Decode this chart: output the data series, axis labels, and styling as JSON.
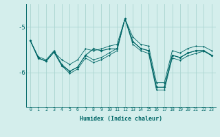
{
  "xlabel": "Humidex (Indice chaleur)",
  "x": [
    0,
    1,
    2,
    3,
    4,
    5,
    6,
    7,
    8,
    9,
    10,
    11,
    12,
    13,
    14,
    15,
    16,
    17,
    18,
    19,
    20,
    21,
    22,
    23
  ],
  "line1": [
    -5.3,
    -5.65,
    -5.72,
    -5.52,
    -5.82,
    -5.97,
    -5.88,
    -5.62,
    -5.72,
    -5.67,
    -5.57,
    -5.47,
    -4.82,
    -5.32,
    -5.47,
    -5.52,
    -6.32,
    -6.32,
    -5.62,
    -5.67,
    -5.57,
    -5.52,
    -5.52,
    -5.62
  ],
  "line2": [
    -5.3,
    -5.68,
    -5.75,
    -5.55,
    -5.85,
    -6.02,
    -5.92,
    -5.68,
    -5.78,
    -5.72,
    -5.62,
    -5.52,
    -4.82,
    -5.38,
    -5.52,
    -5.58,
    -6.38,
    -6.38,
    -5.68,
    -5.73,
    -5.63,
    -5.58,
    -5.53,
    -5.63
  ],
  "line3": [
    -5.3,
    -5.68,
    -5.75,
    -5.55,
    -5.72,
    -5.82,
    -5.72,
    -5.48,
    -5.52,
    -5.48,
    -5.42,
    -5.38,
    -4.82,
    -5.22,
    -5.38,
    -5.42,
    -6.22,
    -6.22,
    -5.52,
    -5.57,
    -5.47,
    -5.42,
    -5.43,
    -5.52
  ],
  "line_main": [
    -5.3,
    -5.68,
    -5.75,
    -5.55,
    -5.85,
    -5.97,
    -5.88,
    -5.62,
    -5.48,
    -5.52,
    -5.48,
    -5.48,
    -4.82,
    -5.32,
    -5.47,
    -5.52,
    -6.32,
    -6.32,
    -5.62,
    -5.67,
    -5.57,
    -5.52,
    -5.52,
    -5.62
  ],
  "bg_color": "#d4eeec",
  "line_color": "#006666",
  "grid_color": "#aad4d0",
  "yticks": [
    -6,
    -5
  ],
  "xlim": [
    -0.5,
    23.5
  ],
  "ylim": [
    -6.75,
    -4.5
  ]
}
